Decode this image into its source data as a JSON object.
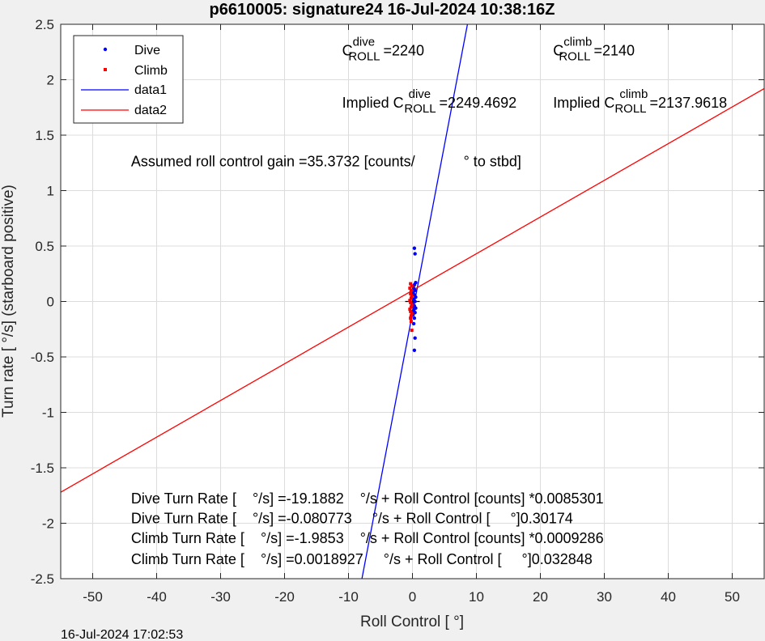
{
  "chart_data": {
    "type": "scatter",
    "title": "p6610005: signature24 16-Jul-2024 10:38:16Z",
    "xlabel": "Roll Control [   °]",
    "ylabel": "Turn rate [   °/s] (starboard positive)",
    "xlim": [
      -55,
      55
    ],
    "ylim": [
      -2.5,
      2.5
    ],
    "xticks": [
      -50,
      -40,
      -30,
      -20,
      -10,
      0,
      10,
      20,
      30,
      40,
      50
    ],
    "yticks": [
      -2.5,
      -2,
      -1.5,
      -1,
      -0.5,
      0,
      0.5,
      1,
      1.5,
      2,
      2.5
    ],
    "grid": true,
    "legend_position": "top-left",
    "series": [
      {
        "name": "Dive",
        "kind": "points",
        "color": "#0000ff",
        "points": [
          [
            0.3,
            0.48
          ],
          [
            0.4,
            0.43
          ],
          [
            0.5,
            0.17
          ],
          [
            0.3,
            0.15
          ],
          [
            0.2,
            0.12
          ],
          [
            0.4,
            0.1
          ],
          [
            0.1,
            0.08
          ],
          [
            0.3,
            0.06
          ],
          [
            0.5,
            0.04
          ],
          [
            0.2,
            0.02
          ],
          [
            0.4,
            0.0
          ],
          [
            0.1,
            -0.02
          ],
          [
            0.3,
            -0.04
          ],
          [
            0.5,
            -0.06
          ],
          [
            0.2,
            -0.08
          ],
          [
            0.4,
            -0.1
          ],
          [
            0.1,
            -0.12
          ],
          [
            0.3,
            -0.15
          ],
          [
            0.2,
            -0.2
          ],
          [
            0.4,
            -0.33
          ],
          [
            0.3,
            -0.44
          ]
        ]
      },
      {
        "name": "Climb",
        "kind": "points",
        "color": "#ff0000",
        "points": [
          [
            -0.3,
            0.16
          ],
          [
            -0.1,
            0.14
          ],
          [
            -0.4,
            0.12
          ],
          [
            -0.2,
            0.1
          ],
          [
            -0.3,
            0.07
          ],
          [
            -0.1,
            0.05
          ],
          [
            -0.2,
            0.03
          ],
          [
            -0.4,
            0.01
          ],
          [
            -0.3,
            -0.01
          ],
          [
            -0.1,
            -0.03
          ],
          [
            -0.2,
            -0.05
          ],
          [
            -0.4,
            -0.07
          ],
          [
            -0.3,
            -0.09
          ],
          [
            -0.1,
            -0.11
          ],
          [
            -0.2,
            -0.13
          ],
          [
            -0.3,
            -0.15
          ],
          [
            -0.2,
            -0.18
          ],
          [
            -0.1,
            -0.26
          ]
        ]
      },
      {
        "name": "data1",
        "kind": "line",
        "color": "#0000ff",
        "line": [
          [
            -7.9,
            -2.5
          ],
          [
            8.6,
            2.5
          ]
        ]
      },
      {
        "name": "data2",
        "kind": "line",
        "color": "#ff0000",
        "line": [
          [
            -55,
            -1.72
          ],
          [
            55,
            1.92
          ]
        ]
      }
    ],
    "origin_marker": [
      0,
      0
    ],
    "annotations": {
      "c_dive": {
        "c": "C",
        "sup": "dive",
        "sub": "ROLL",
        "value": "=2240",
        "x": -11,
        "y": 2.22
      },
      "c_climb": {
        "c": "C",
        "sup": "climb",
        "sub": "ROLL",
        "value": "=2140",
        "x": 22,
        "y": 2.22
      },
      "implied_dive": {
        "prefix": "Implied C",
        "sup": "dive",
        "sub": "ROLL",
        "value": "=2249.4692",
        "x": -11,
        "y": 1.75
      },
      "implied_climb": {
        "prefix": "Implied C",
        "sup": "climb",
        "sub": "ROLL",
        "value": "=2137.9618",
        "x": 22,
        "y": 1.75
      },
      "gain": {
        "text": "Assumed roll control gain =35.3732 [counts/            ° to stbd]",
        "x": -44,
        "y": 1.22
      },
      "fit_lines": [
        {
          "text": "Dive Turn Rate [    °/s] =-19.1882    °/s + Roll Control [counts] *0.0085301",
          "x": -44,
          "y": -1.82
        },
        {
          "text": "Dive Turn Rate [    °/s] =-0.080773     °/s + Roll Control [     °]0.30174",
          "x": -44,
          "y": -2.0
        },
        {
          "text": "Climb Turn Rate [    °/s] =-1.9853    °/s + Roll Control [counts] *0.0009286",
          "x": -44,
          "y": -2.18
        },
        {
          "text": "Climb Turn Rate [    °/s] =0.0018927     °/s + Roll Control [     °]0.032848",
          "x": -44,
          "y": -2.37
        }
      ]
    }
  },
  "footer": {
    "timestamp": "16-Jul-2024 17:02:53"
  }
}
